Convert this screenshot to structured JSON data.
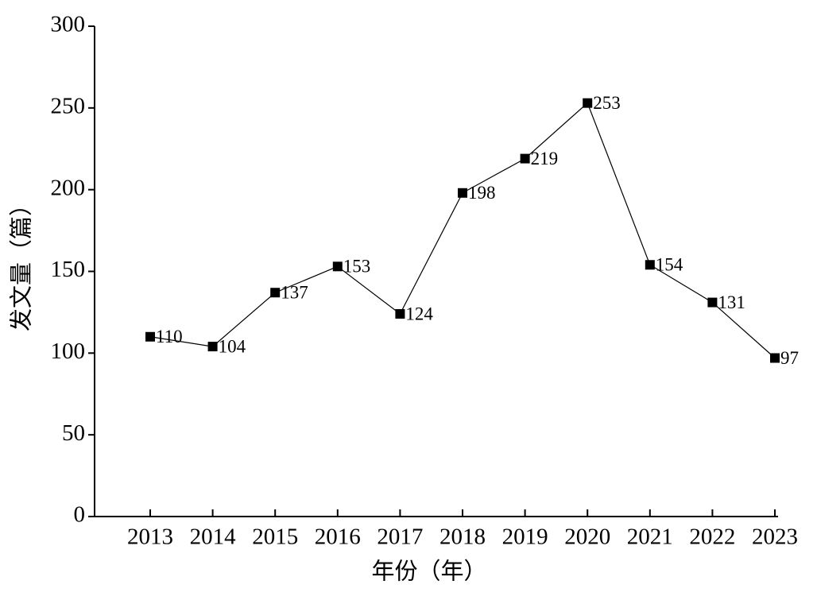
{
  "chart_data": {
    "type": "line",
    "x_label": "年份（年）",
    "y_label": "发文量（篇）",
    "categories": [
      "2013",
      "2014",
      "2015",
      "2016",
      "2017",
      "2018",
      "2019",
      "2020",
      "2021",
      "2022",
      "2023"
    ],
    "values": [
      110,
      104,
      137,
      153,
      124,
      198,
      219,
      253,
      154,
      131,
      97
    ],
    "color": "#000000",
    "ylim": [
      0,
      300
    ],
    "yticks": [
      0,
      50,
      100,
      150,
      200,
      250,
      300
    ],
    "grid": false
  }
}
